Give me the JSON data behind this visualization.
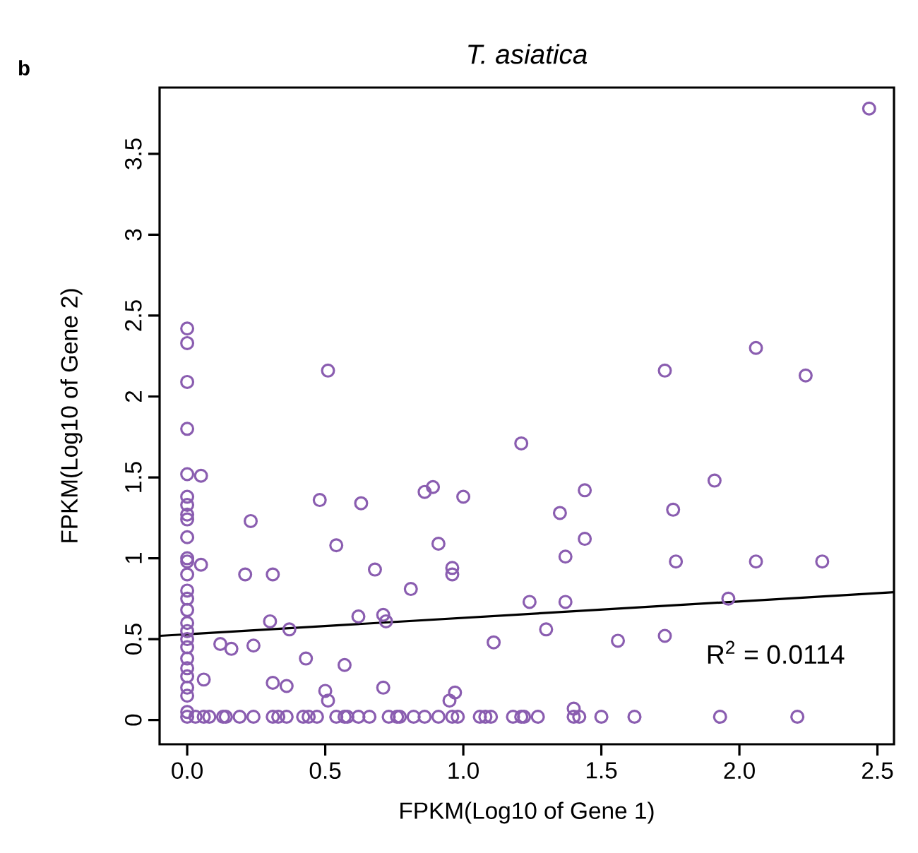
{
  "chart_data": {
    "type": "scatter",
    "title": "T. asiatica",
    "xlabel": "FPKM(Log10 of Gene 1)",
    "ylabel": "FPKM(Log10 of Gene 2)",
    "annotations": [
      "R$^{2}$ = 0.0114",
      "b"
    ],
    "xlim": [
      -0.1,
      2.56
    ],
    "ylim": [
      -0.15,
      3.91
    ],
    "xticks": [
      {
        "value": 0,
        "label": "0.0"
      },
      {
        "value": 0.5,
        "label": "0.5"
      },
      {
        "value": 1,
        "label": "1.0"
      },
      {
        "value": 1.5,
        "label": "1.5"
      },
      {
        "value": 2,
        "label": "2.0"
      },
      {
        "value": 2.5,
        "label": "2.5"
      }
    ],
    "yticks": [
      0,
      0.5,
      1,
      1.5,
      2,
      2.5,
      3,
      3.5
    ],
    "grid": false,
    "series": [
      {
        "color": "#8a5db0",
        "marker": "circle",
        "x": [
          0,
          0,
          0,
          0,
          0,
          0,
          0,
          0,
          0,
          0,
          0,
          0,
          0,
          0,
          0,
          0,
          0,
          0,
          0,
          0,
          0,
          0,
          0,
          0,
          0,
          0,
          0,
          0.05,
          0.05,
          0.06,
          0.12,
          0.16,
          0.23,
          0.24,
          0.21,
          0.31,
          0.3,
          0.37,
          0.31,
          0.36,
          0.43,
          0.48,
          0.51,
          0.5,
          0.51,
          0.54,
          0.57,
          0.62,
          0.63,
          0.68,
          0.71,
          0.71,
          0.72,
          0.81,
          0.86,
          0.89,
          0.91,
          0.96,
          0.96,
          1.0,
          1.11,
          0.97,
          0.95,
          1.21,
          1.73,
          2.06,
          2.24,
          1.44,
          1.35,
          1.44,
          1.37,
          1.76,
          1.91,
          1.77,
          2.06,
          2.3,
          1.24,
          1.37,
          1.96,
          1.3,
          1.56,
          1.73,
          2.47,
          1.4,
          0.03,
          0.06,
          0.08,
          0.13,
          0.14,
          0.19,
          0.24,
          0.31,
          0.33,
          0.36,
          0.42,
          0.44,
          0.47,
          0.54,
          0.57,
          0.58,
          0.62,
          0.66,
          0.73,
          0.76,
          0.77,
          0.82,
          0.86,
          0.91,
          0.96,
          0.98,
          1.06,
          1.08,
          1.1,
          1.18,
          1.21,
          1.22,
          1.27,
          1.4,
          1.42,
          1.5,
          1.62,
          1.93,
          2.21
        ],
        "values": [
          2.42,
          2.33,
          2.09,
          1.8,
          1.52,
          1.38,
          1.33,
          1.27,
          1.24,
          1.13,
          1.0,
          0.98,
          0.9,
          0.8,
          0.75,
          0.68,
          0.6,
          0.55,
          0.5,
          0.45,
          0.38,
          0.32,
          0.27,
          0.2,
          0.15,
          0.05,
          0.02,
          1.51,
          0.96,
          0.25,
          0.47,
          0.44,
          1.23,
          0.46,
          0.9,
          0.9,
          0.61,
          0.56,
          0.23,
          0.21,
          0.38,
          1.36,
          2.16,
          0.18,
          0.12,
          1.08,
          0.34,
          0.64,
          1.34,
          0.93,
          0.2,
          0.65,
          0.61,
          0.81,
          1.41,
          1.44,
          1.09,
          0.94,
          0.9,
          1.38,
          0.48,
          0.17,
          0.12,
          1.71,
          2.16,
          2.3,
          2.13,
          1.42,
          1.28,
          1.12,
          1.01,
          1.3,
          1.48,
          0.98,
          0.98,
          0.98,
          0.73,
          0.73,
          0.75,
          0.56,
          0.49,
          0.52,
          3.78,
          0.07,
          0.02,
          0.02,
          0.02,
          0.02,
          0.02,
          0.02,
          0.02,
          0.02,
          0.02,
          0.02,
          0.02,
          0.02,
          0.02,
          0.02,
          0.02,
          0.02,
          0.02,
          0.02,
          0.02,
          0.02,
          0.02,
          0.02,
          0.02,
          0.02,
          0.02,
          0.02,
          0.02,
          0.02,
          0.02,
          0.02,
          0.02,
          0.02,
          0.02,
          0.02,
          0.02,
          0.02,
          0.02,
          0.02,
          0.02
        ]
      },
      {
        "type": "line",
        "color": "#000000",
        "x": [
          -0.1,
          2.56
        ],
        "values": [
          0.52,
          0.79
        ]
      }
    ]
  }
}
